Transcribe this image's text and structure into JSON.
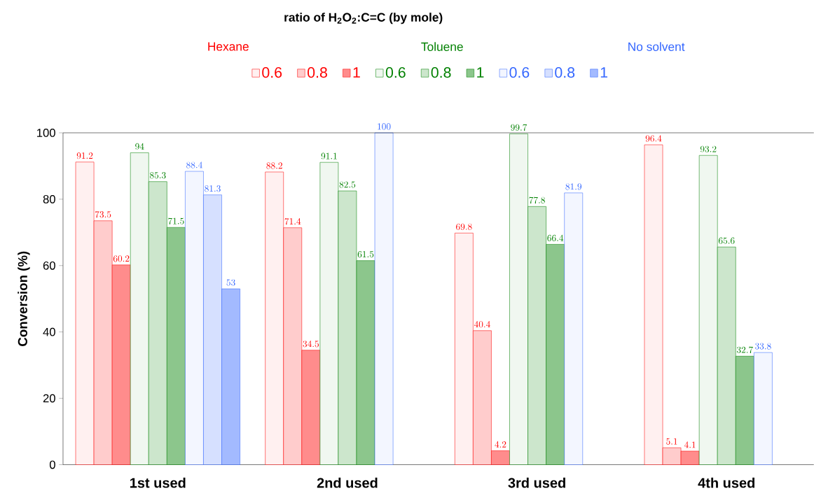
{
  "chart_data": {
    "type": "bar",
    "ylabel": "Conversion (%)",
    "legend_title": "ratio of H$_{2}$O$_{2}$:C=C (by mole)",
    "annotations": [
      "Hexane",
      "Toluene",
      "No solvent"
    ],
    "categories": [
      "1st used",
      "2nd used",
      "3rd used",
      "4th used"
    ],
    "series": [
      {
        "name": "0.6",
        "color": "#ff0000",
        "values": [
          91.2,
          88.2,
          69.8,
          96.4
        ]
      },
      {
        "name": "0.8",
        "color": "#ff0000",
        "values": [
          73.5,
          71.4,
          40.4,
          5.1
        ]
      },
      {
        "name": "1",
        "color": "#ff0000",
        "values": [
          60.2,
          34.5,
          4.2,
          4.1
        ]
      },
      {
        "name": "0.6",
        "color": "#008000",
        "values": [
          94,
          91.1,
          99.7,
          93.2
        ]
      },
      {
        "name": "0.8",
        "color": "#008000",
        "values": [
          85.3,
          82.5,
          77.8,
          65.6
        ]
      },
      {
        "name": "1",
        "color": "#008000",
        "values": [
          71.5,
          61.5,
          66.4,
          32.7
        ]
      },
      {
        "name": "0.6",
        "color": "#3366ff",
        "values": [
          88.4,
          100,
          81.9,
          33.8
        ]
      },
      {
        "name": "0.8",
        "color": "#3366ff",
        "values": [
          81.3,
          null,
          null,
          null
        ]
      },
      {
        "name": "1",
        "color": "#3366ff",
        "values": [
          53,
          null,
          null,
          null
        ]
      }
    ],
    "ylim": [
      0,
      100
    ],
    "yticks": [
      0,
      20,
      40,
      60,
      80,
      100
    ],
    "data_labels": true,
    "legend": "top"
  }
}
